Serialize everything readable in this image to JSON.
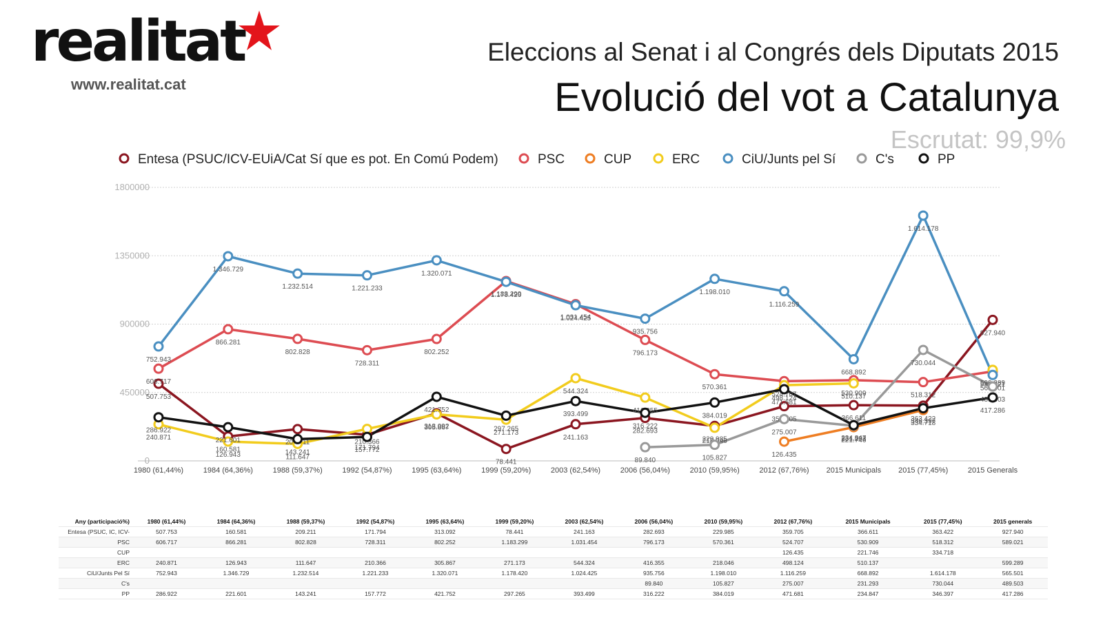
{
  "logo": {
    "text": "realitat",
    "url": "www.realitat.cat",
    "star_color": "#e3141b"
  },
  "header": {
    "title": "Eleccions al Senat i al Congrés dels Diputats 2015",
    "subtitle": "Evolució  del vot a Catalunya",
    "status": "Escrutat: 99,9%"
  },
  "chart_data": {
    "type": "line",
    "categories": [
      "1980 (61,44%)",
      "1984 (64,36%)",
      "1988 (59,37%)",
      "1992 (54,87%)",
      "1995 (63,64%)",
      "1999 (59,20%)",
      "2003 (62,54%)",
      "2006 (56,04%)",
      "2010 (59,95%)",
      "2012 (67,76%)",
      "2015 Municipals",
      "2015 (77,45%)",
      "2015 Generals"
    ],
    "ylim": [
      0,
      1800000
    ],
    "yticks": [
      "0",
      "450000",
      "900000",
      "1350000",
      "1800000"
    ],
    "legend_position": "top",
    "series": [
      {
        "name": "Entesa (PSUC/ICV-EUiA/Cat Sí que es pot. En Comú Podem)",
        "color": "#8b1620",
        "values": [
          507753,
          160581,
          209211,
          171794,
          313092,
          78441,
          241163,
          282693,
          229985,
          359705,
          366611,
          363422,
          927940
        ],
        "labels": [
          "507.753",
          "160.581",
          "209.211",
          "171.794",
          "313.092",
          "78.441",
          "241.163",
          "282.693",
          "229.985",
          "359.705",
          "366.611",
          "363.422",
          "927.940"
        ]
      },
      {
        "name": "PSC",
        "color": "#dd4c52",
        "values": [
          606717,
          866281,
          802828,
          728311,
          802252,
          1183299,
          1031454,
          796173,
          570361,
          524707,
          530909,
          518312,
          589021
        ],
        "labels": [
          "606.717",
          "866.281",
          "802.828",
          "728.311",
          "802.252",
          "1.183.299",
          "1.031.454",
          "796.173",
          "570.361",
          "524.707",
          "530.909",
          "518.312",
          "589.021"
        ]
      },
      {
        "name": "CUP",
        "color": "#ee7d22",
        "values": [
          null,
          null,
          null,
          null,
          null,
          null,
          null,
          null,
          null,
          126435,
          221746,
          334718,
          null
        ],
        "labels": [
          null,
          null,
          null,
          null,
          null,
          null,
          null,
          null,
          null,
          "126.435",
          "221.746",
          "334.718",
          null
        ]
      },
      {
        "name": "ERC",
        "color": "#f2cc1d",
        "values": [
          240871,
          126943,
          111647,
          210366,
          305867,
          271173,
          544324,
          416355,
          218046,
          498124,
          510137,
          null,
          599289
        ],
        "labels": [
          "240.871",
          "126.943",
          "111.647",
          "210.366",
          "305.867",
          "271.173",
          "544.324",
          "416.355",
          "218.046",
          "498.124",
          "510.137",
          null,
          "599.289"
        ]
      },
      {
        "name": "CiU/Junts pel Sí",
        "color": "#4a8fc1",
        "values": [
          752943,
          1346729,
          1232514,
          1221233,
          1320071,
          1178420,
          1024425,
          935756,
          1198010,
          1116259,
          668892,
          1614178,
          565501
        ],
        "labels": [
          "752.943",
          "1.346.729",
          "1.232.514",
          "1.221.233",
          "1.320.071",
          "1.178.420",
          "1.024.425",
          "935.756",
          "1.198.010",
          "1.116.259",
          "668.892",
          "1.614.178",
          "565.501"
        ]
      },
      {
        "name": "C's",
        "color": "#999999",
        "values": [
          null,
          null,
          null,
          null,
          null,
          null,
          null,
          89840,
          105827,
          275007,
          231293,
          730044,
          489503
        ],
        "labels": [
          null,
          null,
          null,
          null,
          null,
          null,
          null,
          "89.840",
          "105.827",
          "275.007",
          "231.293",
          "730.044",
          "489.503"
        ]
      },
      {
        "name": "PP",
        "color": "#111111",
        "values": [
          286922,
          221601,
          143241,
          157772,
          421752,
          297265,
          393499,
          316222,
          384019,
          471681,
          234847,
          346397,
          417286
        ],
        "labels": [
          "286.922",
          "221.601",
          "143.241",
          "157.772",
          "421.752",
          "297.265",
          "393.499",
          "316.222",
          "384.019",
          "471.681",
          "234.847",
          "346.397",
          "417.286"
        ]
      }
    ]
  },
  "table": {
    "headers": [
      "Any (participació%)",
      "1980 (61,44%)",
      "1984 (64,36%)",
      "1988 (59,37%)",
      "1992 (54,87%)",
      "1995 (63,64%)",
      "1999 (59,20%)",
      "2003 (62,54%)",
      "2006 (56,04%)",
      "2010 (59,95%)",
      "2012 (67,76%)",
      "2015 Municipals",
      "2015 (77,45%)",
      "2015 generals"
    ],
    "rows": [
      [
        "Entesa (PSUC, IC, ICV-",
        "507.753",
        "160.581",
        "209.211",
        "171.794",
        "313.092",
        "78.441",
        "241.163",
        "282.693",
        "229.985",
        "359.705",
        "366.611",
        "363.422",
        "927.940"
      ],
      [
        "PSC",
        "606.717",
        "866.281",
        "802.828",
        "728.311",
        "802.252",
        "1.183.299",
        "1.031.454",
        "796.173",
        "570.361",
        "524.707",
        "530.909",
        "518.312",
        "589.021"
      ],
      [
        "CUP",
        "",
        "",
        "",
        "",
        "",
        "",
        "",
        "",
        "",
        "126.435",
        "221.746",
        "334.718",
        ""
      ],
      [
        "ERC",
        "240.871",
        "126.943",
        "111.647",
        "210.366",
        "305.867",
        "271.173",
        "544.324",
        "416.355",
        "218.046",
        "498.124",
        "510.137",
        "",
        "599.289"
      ],
      [
        "CiU/Junts Pel Sí",
        "752.943",
        "1.346.729",
        "1.232.514",
        "1.221.233",
        "1.320.071",
        "1.178.420",
        "1.024.425",
        "935.756",
        "1.198.010",
        "1.116.259",
        "668.892",
        "1.614.178",
        "565.501"
      ],
      [
        "C's",
        "",
        "",
        "",
        "",
        "",
        "",
        "",
        "89.840",
        "105.827",
        "275.007",
        "231.293",
        "730.044",
        "489.503"
      ],
      [
        "PP",
        "286.922",
        "221.601",
        "143.241",
        "157.772",
        "421.752",
        "297.265",
        "393.499",
        "316.222",
        "384.019",
        "471.681",
        "234.847",
        "346.397",
        "417.286"
      ]
    ]
  }
}
